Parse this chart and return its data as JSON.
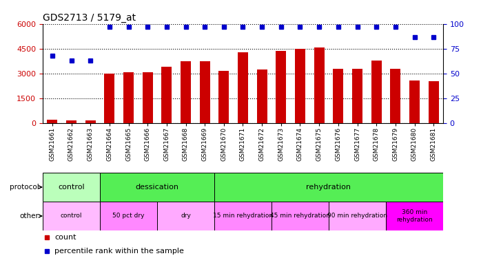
{
  "title": "GDS2713 / 5179_at",
  "samples": [
    "GSM21661",
    "GSM21662",
    "GSM21663",
    "GSM21664",
    "GSM21665",
    "GSM21666",
    "GSM21667",
    "GSM21668",
    "GSM21669",
    "GSM21670",
    "GSM21671",
    "GSM21672",
    "GSM21673",
    "GSM21674",
    "GSM21675",
    "GSM21676",
    "GSM21677",
    "GSM21678",
    "GSM21679",
    "GSM21680",
    "GSM21681"
  ],
  "bar_values": [
    200,
    170,
    170,
    3020,
    3090,
    3080,
    3400,
    3770,
    3750,
    3150,
    4280,
    3230,
    4380,
    4480,
    4600,
    3280,
    3300,
    3800,
    3300,
    2580,
    2560
  ],
  "percentile_values": [
    68,
    63,
    63,
    97,
    97,
    97,
    97,
    97,
    97,
    97,
    97,
    97,
    97,
    97,
    97,
    97,
    97,
    97,
    97,
    87,
    87
  ],
  "bar_color": "#cc0000",
  "dot_color": "#0000cc",
  "ylim_left": [
    0,
    6000
  ],
  "ylim_right": [
    0,
    100
  ],
  "yticks_left": [
    0,
    1500,
    3000,
    4500,
    6000
  ],
  "yticks_right": [
    0,
    25,
    50,
    75,
    100
  ],
  "protocol_groups": [
    {
      "label": "control",
      "start": 0,
      "end": 3,
      "color": "#bbffbb"
    },
    {
      "label": "dessication",
      "start": 3,
      "end": 9,
      "color": "#55ee55"
    },
    {
      "label": "rehydration",
      "start": 9,
      "end": 21,
      "color": "#55ee55"
    }
  ],
  "other_groups": [
    {
      "label": "control",
      "start": 0,
      "end": 3,
      "color": "#ffbbff"
    },
    {
      "label": "50 pct dry",
      "start": 3,
      "end": 6,
      "color": "#ff88ff"
    },
    {
      "label": "dry",
      "start": 6,
      "end": 9,
      "color": "#ffaaff"
    },
    {
      "label": "15 min rehydration",
      "start": 9,
      "end": 12,
      "color": "#ff88ff"
    },
    {
      "label": "45 min rehydration",
      "start": 12,
      "end": 15,
      "color": "#ff88ff"
    },
    {
      "label": "90 min rehydration",
      "start": 15,
      "end": 18,
      "color": "#ffaaff"
    },
    {
      "label": "360 min\nrehydration",
      "start": 18,
      "end": 21,
      "color": "#ff00ff"
    }
  ],
  "legend_items": [
    {
      "label": "count",
      "color": "#cc0000"
    },
    {
      "label": "percentile rank within the sample",
      "color": "#0000cc"
    }
  ],
  "grid_color": "black",
  "tick_label_color_left": "#cc0000",
  "tick_label_color_right": "#0000cc"
}
